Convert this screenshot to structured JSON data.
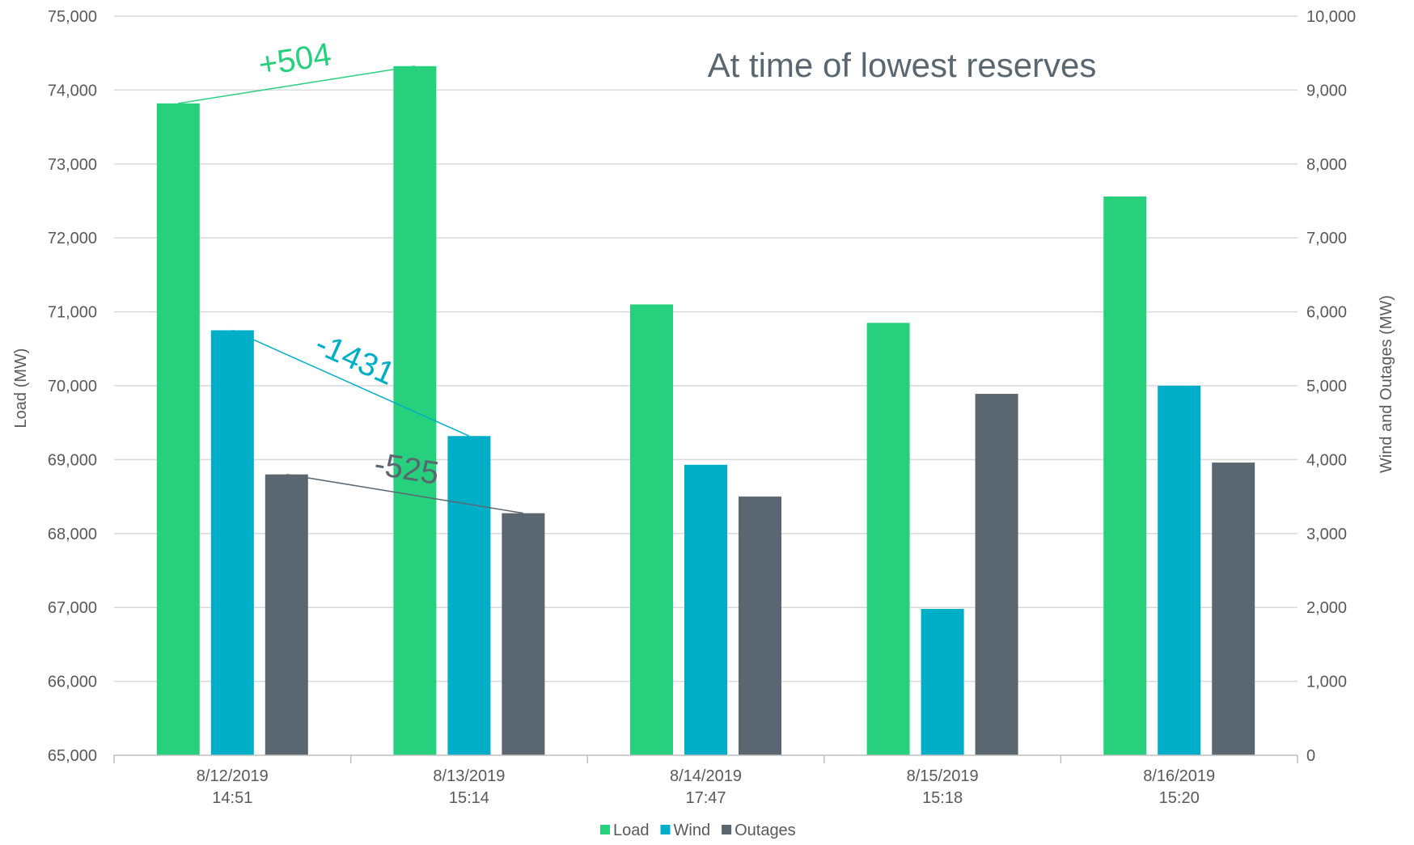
{
  "chart_data": {
    "type": "bar",
    "title": "At time of lowest reserves",
    "ylabel": "Load (MW)",
    "y2label": "Wind and Outages (MW)",
    "ylim": [
      65000,
      75000
    ],
    "y2lim": [
      0,
      10000
    ],
    "yticks": [
      "65,000",
      "66,000",
      "67,000",
      "68,000",
      "69,000",
      "70,000",
      "71,000",
      "72,000",
      "73,000",
      "74,000",
      "75,000"
    ],
    "y2ticks": [
      "0",
      "1,000",
      "2,000",
      "3,000",
      "4,000",
      "5,000",
      "6,000",
      "7,000",
      "8,000",
      "9,000",
      "10,000"
    ],
    "categories": [
      [
        "8/12/2019",
        "14:51"
      ],
      [
        "8/13/2019",
        "15:14"
      ],
      [
        "8/14/2019",
        "17:47"
      ],
      [
        "8/15/2019",
        "15:18"
      ],
      [
        "8/16/2019",
        "15:20"
      ]
    ],
    "series": [
      {
        "name": "Load",
        "axis": "primary",
        "color": "#26d07c",
        "values": [
          73820,
          74324,
          71100,
          70850,
          72560
        ]
      },
      {
        "name": "Wind",
        "axis": "secondary",
        "color": "#00aec7",
        "values": [
          5750,
          4319,
          3930,
          1980,
          5000
        ]
      },
      {
        "name": "Outages",
        "axis": "secondary",
        "color": "#5b6770",
        "values": [
          3800,
          3275,
          3500,
          4890,
          3960
        ]
      }
    ],
    "annotations": [
      {
        "text": "+504",
        "color": "#26d07c",
        "series": "Load",
        "from": 0,
        "to": 1
      },
      {
        "text": "-1431",
        "color": "#00aec7",
        "series": "Wind",
        "from": 0,
        "to": 1
      },
      {
        "text": "-525",
        "color": "#5b6770",
        "series": "Outages",
        "from": 0,
        "to": 1
      }
    ],
    "grid": true,
    "legend_position": "bottom"
  }
}
